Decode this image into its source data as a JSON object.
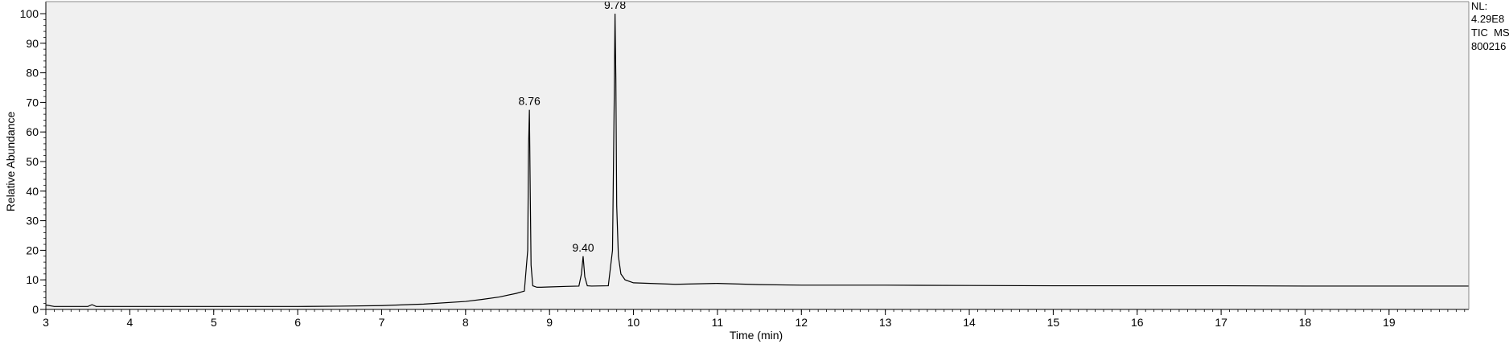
{
  "chart_data": {
    "type": "line",
    "title": "",
    "xlabel": "Time (min)",
    "ylabel": "Relative Abundance",
    "xlim": [
      3,
      19.95
    ],
    "ylim": [
      0,
      100
    ],
    "x_ticks": [
      3,
      4,
      5,
      6,
      7,
      8,
      9,
      10,
      11,
      12,
      13,
      14,
      15,
      16,
      17,
      18,
      19
    ],
    "y_ticks": [
      0,
      10,
      20,
      30,
      40,
      50,
      60,
      70,
      80,
      90,
      100
    ],
    "grid": false,
    "info_lines": [
      "NL:",
      "4.29E8",
      "TIC  MS",
      "800216"
    ],
    "peak_labels": [
      {
        "label": "8.76",
        "x": 8.76,
        "y": 67.5
      },
      {
        "label": "9.40",
        "x": 9.4,
        "y": 18
      },
      {
        "label": "9.78",
        "x": 9.78,
        "y": 100
      }
    ],
    "series": [
      {
        "color": "#000000",
        "x": [
          3.0,
          3.1,
          3.5,
          3.55,
          3.6,
          4.0,
          5.0,
          6.0,
          6.5,
          7.0,
          7.5,
          8.0,
          8.2,
          8.4,
          8.6,
          8.7,
          8.74,
          8.75,
          8.76,
          8.77,
          8.78,
          8.8,
          8.85,
          8.9,
          9.0,
          9.2,
          9.35,
          9.38,
          9.4,
          9.42,
          9.45,
          9.5,
          9.7,
          9.75,
          9.77,
          9.78,
          9.79,
          9.8,
          9.82,
          9.85,
          9.9,
          10.0,
          10.5,
          11.0,
          11.5,
          12.0,
          13.0,
          14.0,
          15.0,
          16.0,
          17.0,
          18.0,
          19.0,
          19.95
        ],
        "y": [
          1.5,
          1.0,
          1.0,
          1.6,
          1.0,
          1.0,
          1.0,
          1.0,
          1.1,
          1.3,
          1.8,
          2.7,
          3.4,
          4.2,
          5.4,
          6.2,
          20,
          55,
          67.5,
          40,
          15,
          8.0,
          7.5,
          7.5,
          7.6,
          7.8,
          7.9,
          12,
          18,
          11,
          8.0,
          7.9,
          8.0,
          20,
          70,
          100,
          78,
          35,
          18,
          12,
          10,
          9.0,
          8.5,
          8.8,
          8.4,
          8.2,
          8.2,
          8.1,
          8.0,
          8.0,
          8.0,
          7.9,
          7.9,
          7.9
        ]
      }
    ]
  }
}
